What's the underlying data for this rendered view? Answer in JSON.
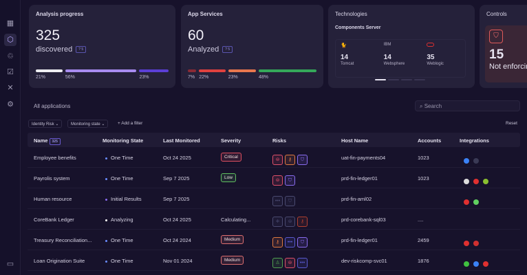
{
  "sidebar": {
    "icons": [
      "grid-icon",
      "applications-icon",
      "identity-icon",
      "checklist-icon",
      "tools-icon",
      "settings-icon"
    ],
    "bottom_icon": "book-icon"
  },
  "cards": {
    "analysis": {
      "title": "Analysis progress",
      "value": "325",
      "label": "discovered",
      "chip": "? 5",
      "bars": [
        {
          "pct": "21%",
          "value": 21,
          "color": "#eeeef2"
        },
        {
          "pct": "56%",
          "value": 56,
          "color": "#a88cf0"
        },
        {
          "pct": "23%",
          "value": 23,
          "color": "#5b3fd6"
        }
      ]
    },
    "app_services": {
      "title": "App Services",
      "value": "60",
      "label": "Analyzed",
      "chip": "? 5",
      "bars": [
        {
          "pct": "7%",
          "value": 7,
          "color": "#8a2a35"
        },
        {
          "pct": "22%",
          "value": 22,
          "color": "#e0413f"
        },
        {
          "pct": "23%",
          "value": 23,
          "color": "#e8774e"
        },
        {
          "pct": "48%",
          "value": 48,
          "color": "#35a85a"
        }
      ]
    },
    "technologies": {
      "title": "Technologies",
      "subtitle": "Components Server",
      "items": [
        {
          "logo": "IBM",
          "icon": "tomcat-icon",
          "value": "14",
          "name": "Tomcat"
        },
        {
          "logo": "IBM",
          "icon": "ibm-logo",
          "value": "14",
          "name": "Websphere"
        },
        {
          "logo": "",
          "icon": "oracle-icon",
          "value": "35",
          "name": "Weblogic"
        }
      ]
    },
    "controls": {
      "title": "Controls",
      "value": "15",
      "label": "Not enforcing"
    }
  },
  "apps": {
    "title": "All applications",
    "search_placeholder": "Search",
    "filters": [
      "Identity Risk ⌄",
      "Monitoring state ⌄"
    ],
    "add_filter": "+ Add a filter",
    "reset": "Reset",
    "columns": [
      "Name",
      "Monitoring State",
      "Last Monitored",
      "Severity",
      "Risks",
      "Host Name",
      "Accounts",
      "Integrations"
    ],
    "name_count": "325",
    "rows": [
      {
        "name": "Employee benefits",
        "state": "One Time",
        "state_color": "#6a8cff",
        "last": "Oct 24 2025",
        "severity": "Critical",
        "sev_color": "#e05060",
        "risks": [
          [
            "#e0506a",
            "⊜"
          ],
          [
            "#e07a40",
            "⚷"
          ],
          [
            "#8a6cf0",
            "⛉"
          ]
        ],
        "host": "uat-fin-payments04",
        "accounts": "1023",
        "integrations": [
          "#3b82f6",
          "#3a3a55"
        ]
      },
      {
        "name": "Payrolis system",
        "state": "One Time",
        "state_color": "#6a8cff",
        "last": "Sep 7 2025",
        "severity": "Low",
        "sev_color": "#60c060",
        "risks": [
          [
            "#e0506a",
            "⊜"
          ],
          [
            "#8a6cf0",
            "⛉"
          ]
        ],
        "host": "prd-fin-ledger01",
        "accounts": "1023",
        "integrations": [
          "#dddddd",
          "#e03030",
          "#8ac030"
        ]
      },
      {
        "name": "Human resource",
        "state": "Initial Results",
        "state_color": "#8a6cf0",
        "last": "Sep 7 2025",
        "severity": "",
        "sev_color": "",
        "risks": [
          [
            "#4a4a70",
            "•••"
          ],
          [
            "#4a4a70",
            "⛉"
          ]
        ],
        "host": "prd-fin-aml02",
        "accounts": "",
        "integrations": [
          "#e03030",
          "#60d060"
        ]
      },
      {
        "name": "CoreBank  Ledger",
        "state": "Analyzing",
        "state_color": "#ffffff",
        "last": "Oct 24 2025",
        "severity": "Calculating...",
        "sev_color": "",
        "risks": [
          [
            "#4a4a70",
            "⁜"
          ],
          [
            "#4a4a70",
            "⊜"
          ],
          [
            "#b04030",
            "⚷"
          ]
        ],
        "host": "prd-corebank-sql03",
        "accounts": "....",
        "integrations": []
      },
      {
        "name": "Treasury Reconciliation...",
        "state": "One Time",
        "state_color": "#6a8cff",
        "last": "Oct 24 2024",
        "severity": "Medium",
        "sev_color": "#e07070",
        "risks": [
          [
            "#e07a40",
            "⚷"
          ],
          [
            "#5a5ad0",
            "•••"
          ],
          [
            "#8a6cf0",
            "⛉"
          ]
        ],
        "host": "prd-fin-ledger01",
        "accounts": "2459",
        "integrations": [
          "#e03030",
          "#d03030"
        ]
      },
      {
        "name": "Loan Origination Suite",
        "state": "One Time",
        "state_color": "#6a8cff",
        "last": "Nov 01 2024",
        "severity": "Medium",
        "sev_color": "#e07070",
        "risks": [
          [
            "#50a050",
            "♙"
          ],
          [
            "#e0506a",
            "⊜"
          ],
          [
            "#5a5ad0",
            "•••"
          ]
        ],
        "host": "dev-riskcomp-svc01",
        "accounts": "1876",
        "integrations": [
          "#40c040",
          "#3b82f6",
          "#e03030"
        ]
      }
    ]
  }
}
